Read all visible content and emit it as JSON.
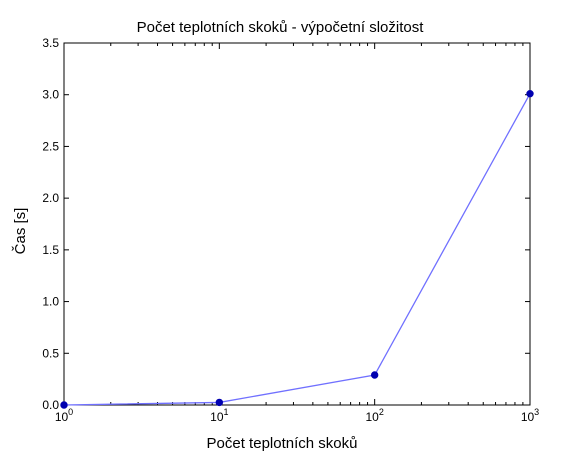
{
  "chart_data": {
    "type": "line",
    "title": "Počet teplotních skoků - výpočetní složitost",
    "xlabel": "Počet teplotních skoků",
    "ylabel": "Čas [s]",
    "xscale": "log",
    "xlim": [
      1,
      1000
    ],
    "ylim": [
      0,
      3.5
    ],
    "grid": false,
    "x_ticks": [
      {
        "value": 1,
        "base": "10",
        "exp": "0"
      },
      {
        "value": 10,
        "base": "10",
        "exp": "1"
      },
      {
        "value": 100,
        "base": "10",
        "exp": "2"
      },
      {
        "value": 1000,
        "base": "10",
        "exp": "3"
      }
    ],
    "y_ticks": [
      "0.0",
      "0.5",
      "1.0",
      "1.5",
      "2.0",
      "2.5",
      "3.0",
      "3.5"
    ],
    "series": [
      {
        "x": [
          1,
          10,
          100,
          1000
        ],
        "values": [
          0.0,
          0.025,
          0.29,
          3.01
        ],
        "line_color": "#7070ff",
        "marker_color": "#0000b0"
      }
    ]
  }
}
